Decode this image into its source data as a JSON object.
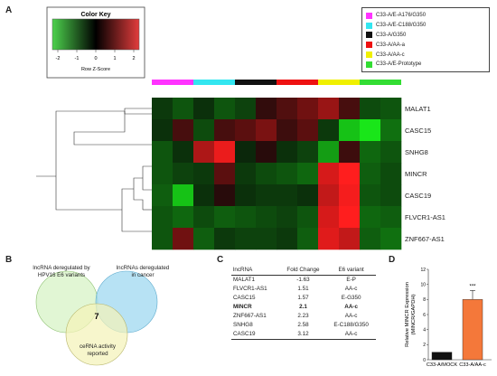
{
  "panels": {
    "a": "A",
    "b": "B",
    "c": "C",
    "d": "D"
  },
  "color_key": {
    "title": "Color Key",
    "ticks": [
      "-2",
      "-1",
      "0",
      "1",
      "2"
    ],
    "xlabel": "Row Z-Score"
  },
  "legend": [
    {
      "label": "C33-A/E-A176/G350",
      "color": "#ff33ff"
    },
    {
      "label": "C33-A/E-C188/G350",
      "color": "#33e6f0"
    },
    {
      "label": "C33-A/G350",
      "color": "#111111"
    },
    {
      "label": "C33-A/AA-a",
      "color": "#ee1111"
    },
    {
      "label": "C33-A/AA-c",
      "color": "#f0f000"
    },
    {
      "label": "C33-A/E-Prototype",
      "color": "#33dd33"
    }
  ],
  "heatmap": {
    "column_groups": [
      "#ff33ff",
      "#33e6f0",
      "#111111",
      "#ee1111",
      "#f0f000",
      "#33dd33"
    ],
    "rows": [
      "MALAT1",
      "CASC15",
      "SNHG8",
      "MINCR",
      "CASC19",
      "FLVCR1-AS1",
      "ZNF667-AS1"
    ],
    "values": [
      [
        -0.3,
        -0.6,
        -0.2,
        -0.6,
        -0.4,
        0.2,
        0.5,
        0.8,
        1.2,
        0.4,
        -0.5,
        -0.6
      ],
      [
        -0.2,
        0.4,
        -0.5,
        0.4,
        0.6,
        0.9,
        0.3,
        0.6,
        -0.3,
        -1.8,
        -2.2,
        -0.9
      ],
      [
        -0.6,
        -0.2,
        1.4,
        2.0,
        -0.1,
        0.1,
        -0.2,
        -0.4,
        -1.4,
        0.3,
        -0.8,
        -0.6
      ],
      [
        -0.6,
        -0.4,
        -0.3,
        0.6,
        -0.3,
        -0.5,
        -0.6,
        -0.8,
        1.8,
        2.2,
        -0.7,
        -0.5
      ],
      [
        -0.7,
        -1.8,
        -0.2,
        0.1,
        -0.2,
        -0.3,
        -0.3,
        -0.2,
        1.6,
        2.1,
        -0.6,
        -0.5
      ],
      [
        -0.6,
        -0.8,
        -0.5,
        -0.7,
        -0.6,
        -0.5,
        -0.4,
        -0.6,
        1.8,
        2.2,
        -0.8,
        -0.7
      ],
      [
        -0.6,
        0.8,
        -0.7,
        -0.3,
        -0.4,
        -0.4,
        -0.3,
        -0.7,
        1.9,
        1.6,
        -0.7,
        -0.9
      ]
    ]
  },
  "venn": {
    "circle_top_left": "lncRNA deregulated by HPV16 E6 variants",
    "circle_top_right": "lncRNAs deregulated in cancer",
    "circle_bottom": "ceRNA activity reported",
    "center": "7"
  },
  "table": {
    "headers": [
      "lncRNA",
      "Fold Change",
      "E6 variant"
    ],
    "rows": [
      {
        "lncrna": "MALAT1",
        "fold": "-1.63",
        "variant": "E-P",
        "bold": false
      },
      {
        "lncrna": "FLVCR1-AS1",
        "fold": "1.51",
        "variant": "AA-c",
        "bold": false
      },
      {
        "lncrna": "CASC15",
        "fold": "1.57",
        "variant": "E-G350",
        "bold": false
      },
      {
        "lncrna": "MINCR",
        "fold": "2.1",
        "variant": "AA-c",
        "bold": true
      },
      {
        "lncrna": "ZNF667-AS1",
        "fold": "2.23",
        "variant": "AA-c",
        "bold": false
      },
      {
        "lncrna": "SNHG8",
        "fold": "2.58",
        "variant": "E-C188/G350",
        "bold": false
      },
      {
        "lncrna": "CASC19",
        "fold": "3.12",
        "variant": "AA-c",
        "bold": false
      }
    ]
  },
  "chart_data": {
    "type": "bar",
    "categories": [
      "C33-A/MOCK",
      "C33-A/AA-c"
    ],
    "values": [
      1.0,
      8.0
    ],
    "errors": [
      0,
      1.2
    ],
    "colors": [
      "#111111",
      "#f4783a"
    ],
    "ylabel": "Relative MINCR Expression\n(MINCR/GAPDH)",
    "yticks": [
      "0",
      "2",
      "4",
      "6",
      "8",
      "10",
      "12"
    ],
    "ylim": [
      0,
      12
    ],
    "significance": "***"
  }
}
